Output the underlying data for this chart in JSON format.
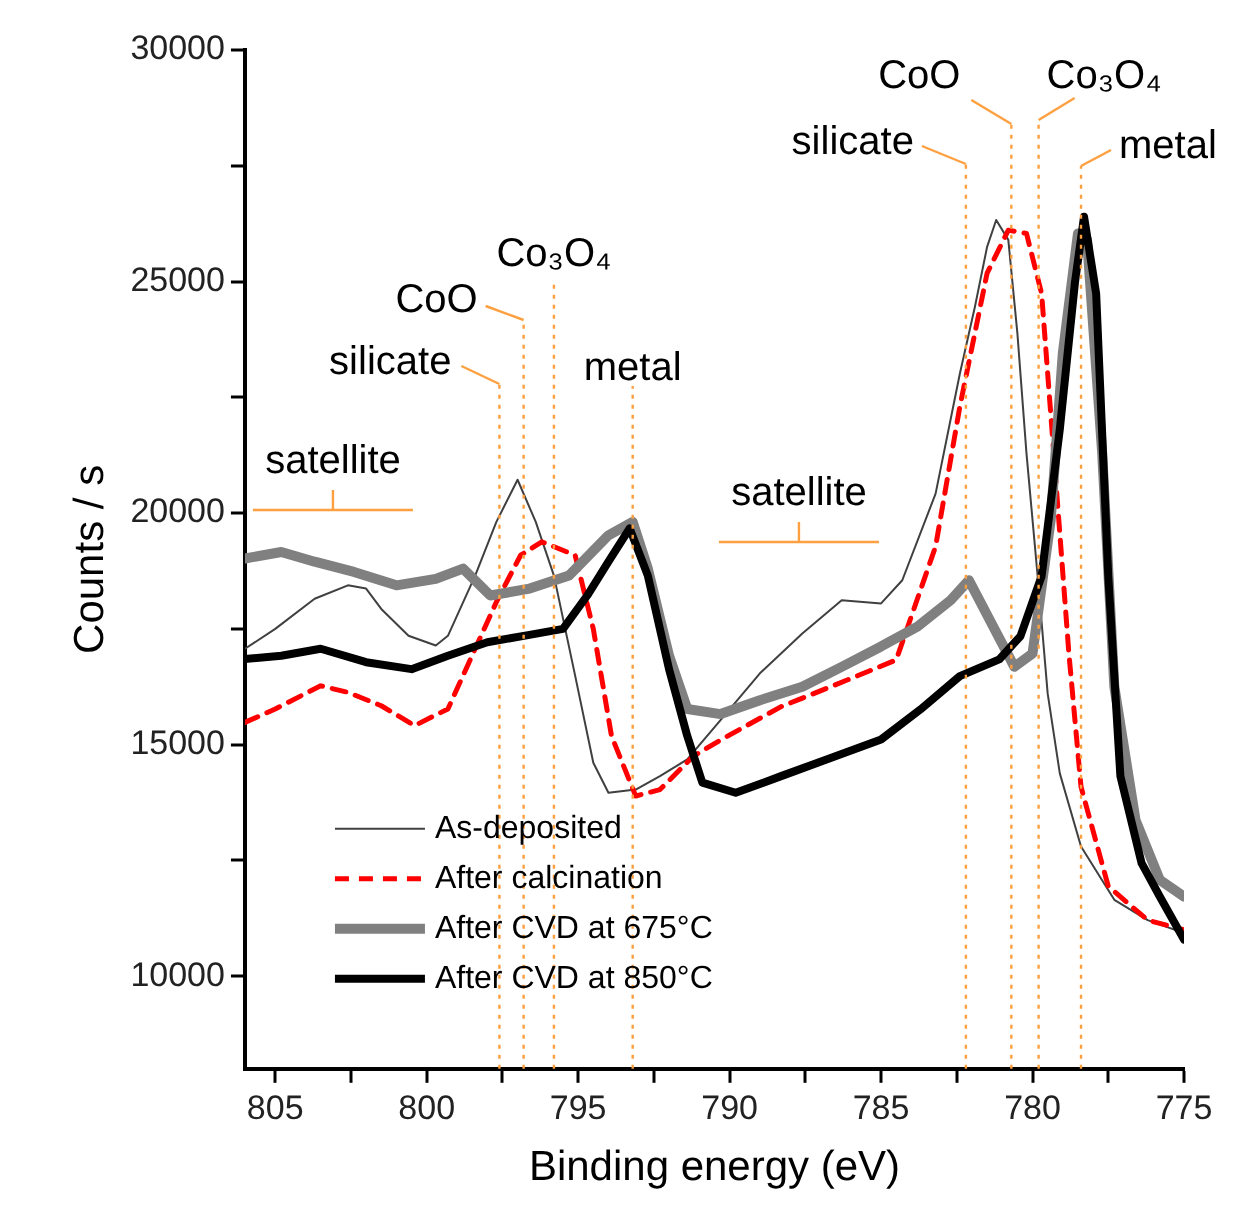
{
  "chart_data": {
    "type": "line",
    "xlabel": "Binding energy (eV)",
    "ylabel": "Counts / s",
    "xlim": [
      806,
      775
    ],
    "xticks": [
      805,
      {
        "value": 802.5,
        "label": null
      },
      800,
      {
        "value": 797.5,
        "label": null
      },
      795,
      {
        "value": 792.5,
        "label": null
      },
      790,
      {
        "value": 787.5,
        "label": null
      },
      785,
      {
        "value": 782.5,
        "label": null
      },
      780,
      {
        "value": 777.5,
        "label": null
      },
      775
    ],
    "ylim": [
      8000,
      30000
    ],
    "yticks": [
      10000,
      {
        "value": 12500,
        "label": null
      },
      15000,
      {
        "value": 17500,
        "label": null
      },
      20000,
      {
        "value": 22500,
        "label": null
      },
      25000,
      {
        "value": 27500,
        "label": null
      },
      30000
    ],
    "grid": false,
    "legend": "bottom left",
    "marker": "none",
    "series": [
      {
        "name": "As-deposited",
        "color": "#404040",
        "line_style": "solid",
        "x": [
          806,
          805,
          803.7,
          802.6,
          802,
          801.5,
          800.6,
          799.7,
          799.3,
          798.4,
          797.7,
          797,
          796.4,
          795.8,
          795.1,
          794.5,
          794,
          793.1,
          792.3,
          791.4,
          790.3,
          789,
          787.6,
          786.3,
          785,
          784.3,
          783.2,
          782.4,
          781.9,
          781.5,
          781.2,
          780.8,
          780.5,
          780.2,
          779.8,
          779.5,
          779.1,
          778.4,
          777.3,
          776.2,
          775
        ],
        "values": [
          17070,
          17500,
          18150,
          18440,
          18370,
          17930,
          17350,
          17140,
          17350,
          18650,
          19810,
          20720,
          19810,
          18650,
          16490,
          14610,
          13960,
          14030,
          14320,
          14680,
          15530,
          16540,
          17400,
          18120,
          18050,
          18550,
          20420,
          23010,
          24460,
          25750,
          26330,
          25900,
          23880,
          21290,
          18410,
          16100,
          14380,
          12800,
          11650,
          11210,
          10930
        ]
      },
      {
        "name": "After calcination",
        "color": "#ff0000",
        "line_style": "dashed",
        "x": [
          806,
          805,
          803.5,
          802.6,
          801.5,
          800.4,
          799.3,
          798.4,
          797.7,
          796.9,
          796.2,
          795.1,
          794.5,
          793.9,
          793.1,
          792.3,
          791.2,
          790.3,
          788.3,
          786.1,
          784.5,
          783.2,
          782.4,
          781.5,
          780.8,
          780.2,
          779.7,
          779.3,
          778.8,
          778.4,
          777.5,
          776.2,
          775
        ],
        "values": [
          15480,
          15770,
          16270,
          16130,
          15840,
          15410,
          15770,
          17070,
          18080,
          19090,
          19380,
          19090,
          17500,
          15190,
          13890,
          14030,
          14750,
          15100,
          15820,
          16400,
          16830,
          19280,
          22300,
          25180,
          26110,
          26040,
          24740,
          21290,
          16970,
          14090,
          11940,
          11210,
          11000
        ]
      },
      {
        "name": "After CVD at 675°C",
        "color": "#808080",
        "line_style": "solid",
        "x": [
          806,
          804.8,
          803.7,
          802.4,
          801,
          799.7,
          798.8,
          797.9,
          796.6,
          795.3,
          794,
          793.2,
          792.7,
          792,
          791.4,
          790.3,
          789,
          787.6,
          786.3,
          785,
          783.8,
          782.7,
          782.1,
          781.3,
          780.6,
          780,
          779.4,
          779,
          778.5,
          778.2,
          777.7,
          777.3,
          776.6,
          775.8,
          775
        ],
        "values": [
          19020,
          19160,
          18950,
          18730,
          18440,
          18580,
          18800,
          18220,
          18370,
          18650,
          19520,
          19810,
          18800,
          16920,
          15770,
          15660,
          15960,
          16250,
          16680,
          17120,
          17550,
          18120,
          18550,
          17550,
          16680,
          16970,
          19850,
          23460,
          26040,
          25900,
          21290,
          16250,
          13370,
          12080,
          11720
        ]
      },
      {
        "name": "After CVD at 850°C",
        "color": "#000000",
        "line_style": "solid",
        "x": [
          806,
          804.8,
          803.5,
          802,
          800.5,
          799.3,
          798,
          796.7,
          795.5,
          794.7,
          794,
          793.3,
          792.7,
          792,
          791.4,
          790.9,
          789.8,
          788.3,
          786.8,
          785,
          783.7,
          782.4,
          781.1,
          780.4,
          779.7,
          779.1,
          778.6,
          778.3,
          777.9,
          777.5,
          777.1,
          776.4,
          775.8,
          775
        ],
        "values": [
          16850,
          16920,
          17070,
          16780,
          16630,
          16920,
          17210,
          17360,
          17500,
          18220,
          18950,
          19670,
          18650,
          16630,
          15190,
          14180,
          13960,
          14320,
          14680,
          15110,
          15760,
          16480,
          16840,
          17340,
          18640,
          21810,
          24980,
          26400,
          24740,
          18640,
          14320,
          12440,
          11720,
          10790
        ]
      }
    ],
    "ref_lines": [
      {
        "axis": "x",
        "value": 797.6,
        "label": "silicate",
        "color": "#ffa040",
        "line_style": "dotted"
      },
      {
        "axis": "x",
        "value": 796.8,
        "label": "CoO",
        "color": "#ffa040",
        "line_style": "dotted"
      },
      {
        "axis": "x",
        "value": 795.8,
        "label": "Co₃O₄",
        "color": "#ffa040",
        "line_style": "dotted"
      },
      {
        "axis": "x",
        "value": 793.2,
        "label": "metal",
        "color": "#ffa040",
        "line_style": "dotted"
      },
      {
        "axis": "x",
        "value": 782.2,
        "label": "silicate",
        "color": "#ffa040",
        "line_style": "dotted"
      },
      {
        "axis": "x",
        "value": 780.7,
        "label": "CoO",
        "color": "#ffa040",
        "line_style": "dotted"
      },
      {
        "axis": "x",
        "value": 779.8,
        "label": "Co₃O₄",
        "color": "#ffa040",
        "line_style": "dotted"
      },
      {
        "axis": "x",
        "value": 778.4,
        "label": "metal",
        "color": "#ffa040",
        "line_style": "dotted"
      }
    ],
    "annotations": [
      "satellite",
      "satellite"
    ]
  }
}
